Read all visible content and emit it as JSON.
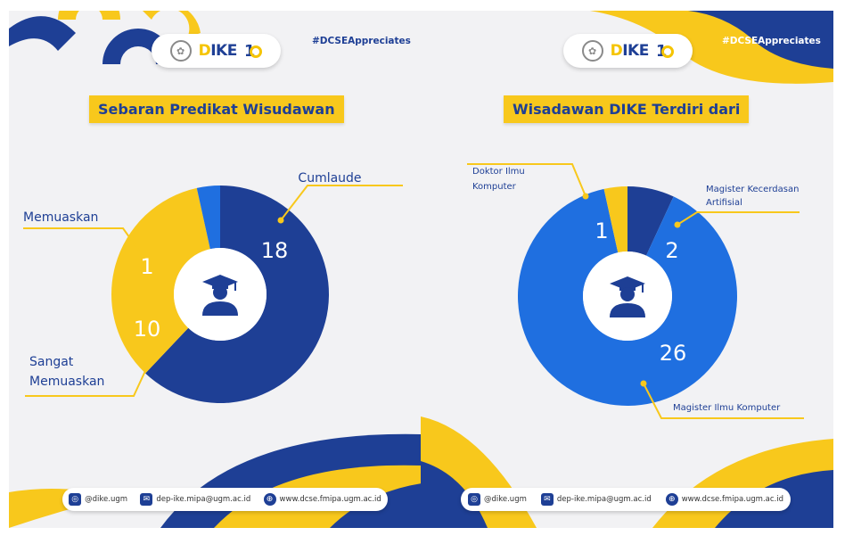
{
  "colors": {
    "navy": "#1e3f95",
    "blue": "#1f6fe0",
    "yellow": "#f8c81c",
    "background": "#f2f2f4",
    "white": "#ffffff"
  },
  "header": {
    "hashtag": "#DCSEAppreciates"
  },
  "footer": {
    "instagram": "@dike.ugm",
    "email": "dep-ike.mipa@ugm.ac.id",
    "website": "www.dcse.fmipa.ugm.ac.id",
    "instagram_icon": "instagram-icon",
    "email_icon": "mail-icon",
    "website_icon": "globe-icon"
  },
  "chart_data": [
    {
      "type": "pie",
      "title": "Sebaran Predikat Wisudawan",
      "categories": [
        "Cumlaude",
        "Sangat Memuaskan",
        "Memuaskan"
      ],
      "values": [
        18,
        10,
        1
      ],
      "colors": [
        "#1e3f95",
        "#f8c81c",
        "#1f6fe0"
      ],
      "center_icon": "graduate-icon"
    },
    {
      "type": "pie",
      "title": "Wisadawan DIKE Terdiri dari",
      "categories": [
        "Magister Kecerdasan Artifisial",
        "Magister Ilmu Komputer",
        "Doktor Ilmu Komputer"
      ],
      "values": [
        2,
        26,
        1
      ],
      "colors": [
        "#1e3f95",
        "#1f6fe0",
        "#f8c81c"
      ],
      "center_icon": "graduate-icon"
    }
  ]
}
